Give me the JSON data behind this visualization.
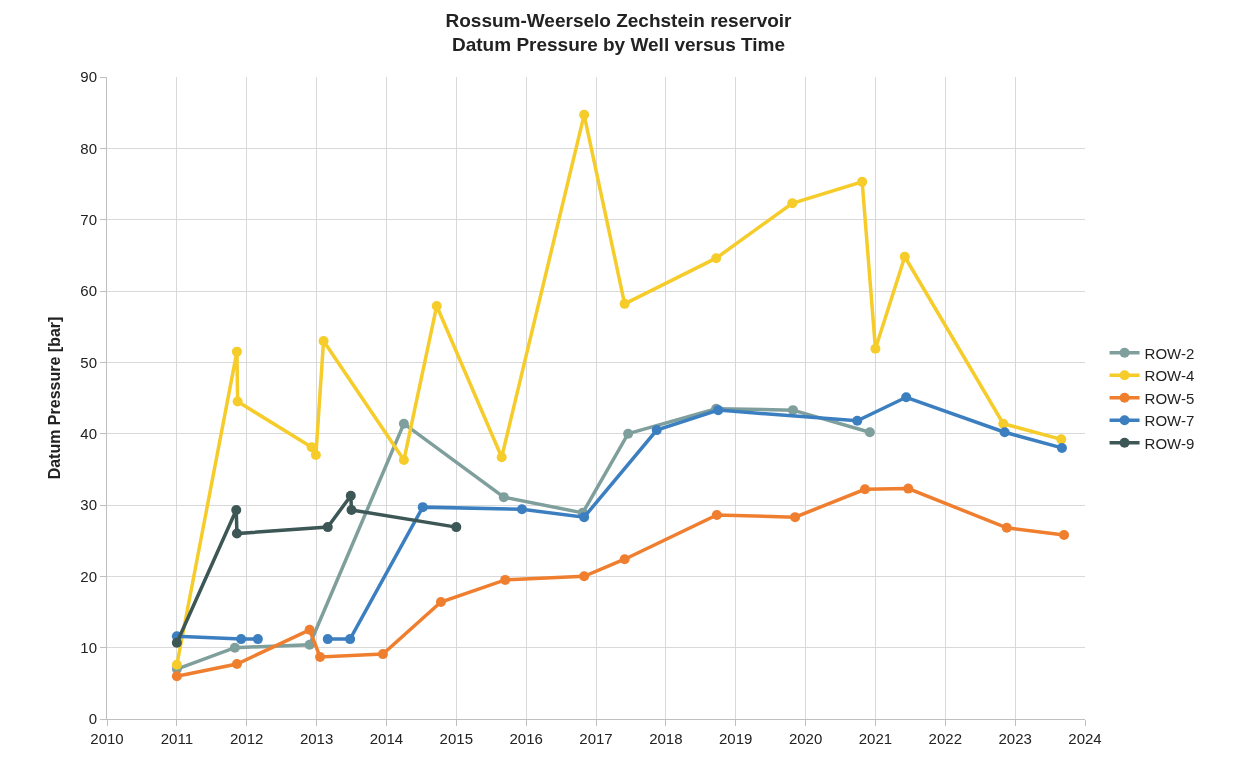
{
  "chart_data": {
    "type": "line",
    "title": "Rossum-Weerselo Zechstein reservoir\nDatum Pressure by Well versus Time",
    "ylabel": "Datum Pressure [bar]",
    "xlim": [
      2010,
      2024
    ],
    "xticks": [
      2010,
      2011,
      2012,
      2013,
      2014,
      2015,
      2016,
      2017,
      2018,
      2019,
      2020,
      2021,
      2022,
      2023,
      2024
    ],
    "ylim": [
      0,
      90
    ],
    "yticks": [
      0,
      10,
      20,
      30,
      40,
      50,
      60,
      70,
      80,
      90
    ],
    "grid": true,
    "legend": "right",
    "marker": "circle",
    "line_style": "solid",
    "series": [
      {
        "name": "ROW-2",
        "color": "#7f9f9c",
        "x": [
          2011.0,
          2011.83,
          2012.9,
          2014.25,
          2015.68,
          2016.81,
          2017.46,
          2018.72,
          2019.82,
          2020.92
        ],
        "values": [
          7.0,
          10.0,
          10.4,
          41.4,
          31.1,
          28.9,
          40.0,
          43.5,
          43.3,
          40.2
        ]
      },
      {
        "name": "ROW-4",
        "color": "#f5cc2a",
        "x": [
          2011.0,
          2011.86,
          2011.87,
          2012.93,
          2012.99,
          2013.1,
          2014.25,
          2014.72,
          2015.65,
          2016.83,
          2017.41,
          2018.72,
          2019.81,
          2020.81,
          2021.0,
          2021.42,
          2022.83,
          2023.66
        ],
        "values": [
          7.6,
          51.5,
          44.5,
          38.1,
          37.0,
          53.0,
          36.3,
          57.9,
          36.7,
          84.7,
          58.2,
          64.6,
          72.3,
          75.3,
          51.9,
          64.8,
          41.4,
          39.2
        ]
      },
      {
        "name": "ROW-5",
        "color": "#ef7f2f",
        "x": [
          2011.0,
          2011.86,
          2012.9,
          2013.05,
          2013.95,
          2014.78,
          2015.7,
          2016.83,
          2017.41,
          2018.73,
          2019.85,
          2020.85,
          2021.47,
          2022.88,
          2023.7
        ],
        "values": [
          6.0,
          7.7,
          12.5,
          8.7,
          9.1,
          16.4,
          19.5,
          20.0,
          22.4,
          28.6,
          28.3,
          32.2,
          32.3,
          26.8,
          25.8
        ]
      },
      {
        "name": "ROW-7",
        "color": "#3b7fc0",
        "x": [
          2011.0,
          2011.92,
          2012.16,
          null,
          2013.16,
          2013.48,
          2014.52,
          2015.94,
          2016.83,
          2017.87,
          2018.75,
          2020.74,
          2021.44,
          2022.85,
          2023.67
        ],
        "values": [
          11.6,
          11.2,
          11.2,
          null,
          11.2,
          11.2,
          29.7,
          29.4,
          28.3,
          40.5,
          43.3,
          41.8,
          45.1,
          40.2,
          38.0
        ]
      },
      {
        "name": "ROW-9",
        "color": "#3d5656",
        "x": [
          2011.0,
          2011.85,
          2011.86,
          2013.16,
          2013.49,
          2013.5,
          2015.0
        ],
        "values": [
          10.7,
          29.3,
          26.0,
          26.9,
          31.3,
          29.3,
          26.9
        ]
      }
    ]
  }
}
